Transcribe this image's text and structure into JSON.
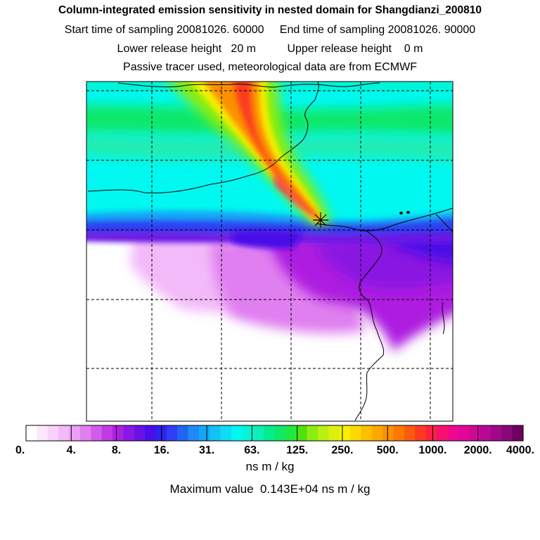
{
  "header": {
    "title": "Column-integrated emission sensitivity in nested domain for Shangdianzi_200810",
    "sampling_line": "Start time of sampling 20081026. 60000     End time of sampling 20081026. 90000",
    "release_line": "Lower release height   20 m          Upper release height    0 m",
    "tracer_line": "Passive tracer used, meteorological data are from ECMWF"
  },
  "colorbar": {
    "units": "ns m / kg",
    "tick_labels": [
      "0.",
      "4.",
      "8.",
      "16.",
      "31.",
      "63.",
      "125.",
      "250.",
      "500.",
      "1000.",
      "2000.",
      "4000."
    ],
    "colors": [
      "#ffffff",
      "#fbe8fd",
      "#f7d2fb",
      "#f2baf8",
      "#eca0f5",
      "#e07ff0",
      "#d05cea",
      "#bf3ce4",
      "#ad1fe0",
      "#8a18e2",
      "#6a12e4",
      "#4a0ee8",
      "#3022ee",
      "#2f3ff2",
      "#1f64f4",
      "#1f8af6",
      "#15a6f6",
      "#12c2f4",
      "#10dcf2",
      "#00f8f0",
      "#05f4d4",
      "#0af0b8",
      "#05ec90",
      "#10e86a",
      "#20e840",
      "#50e010",
      "#8cec10",
      "#b8f010",
      "#dcf010",
      "#f8f000",
      "#fcd800",
      "#fcc000",
      "#fca800",
      "#fc9000",
      "#fc7800",
      "#fc5a10",
      "#fc3a20",
      "#fc2040",
      "#f81070",
      "#f00890",
      "#e00898",
      "#d00898",
      "#b80898",
      "#a00888",
      "#880878",
      "#700060"
    ]
  },
  "chart_data": {
    "type": "heatmap",
    "title": "Column-integrated emission sensitivity in nested domain for Shangdianzi_200810",
    "units": "ns m / kg",
    "scale": "logarithmic",
    "levels": [
      0,
      4,
      8,
      16,
      31,
      63,
      125,
      250,
      500,
      1000,
      2000,
      4000
    ],
    "max_value": "0.143E+04",
    "receptor": "Shangdianzi",
    "sampling_start": "20081026. 60000",
    "sampling_end": "20081026. 90000",
    "release_height_lower_m": 20,
    "release_height_upper_m": 0,
    "grid": true,
    "legend": "bottom",
    "fields": [
      {
        "region": "north of receptor (upper map)",
        "range": "31.-125.",
        "colors": "cyan to green"
      },
      {
        "region": "plume from NW to receptor",
        "range": "250.-1000.+",
        "colors": "yellow to red"
      },
      {
        "region": "band at receptor latitude",
        "range": "8.-16.",
        "colors": "blue to violet"
      },
      {
        "region": "southeast of receptor",
        "range": "4.-8.",
        "colors": "purple"
      },
      {
        "region": "southwest (lower left)",
        "range": "0.-4.",
        "colors": "white to pale pink"
      }
    ]
  },
  "footer": {
    "max_label": "Maximum value  0.143E+04 ns m / kg"
  }
}
